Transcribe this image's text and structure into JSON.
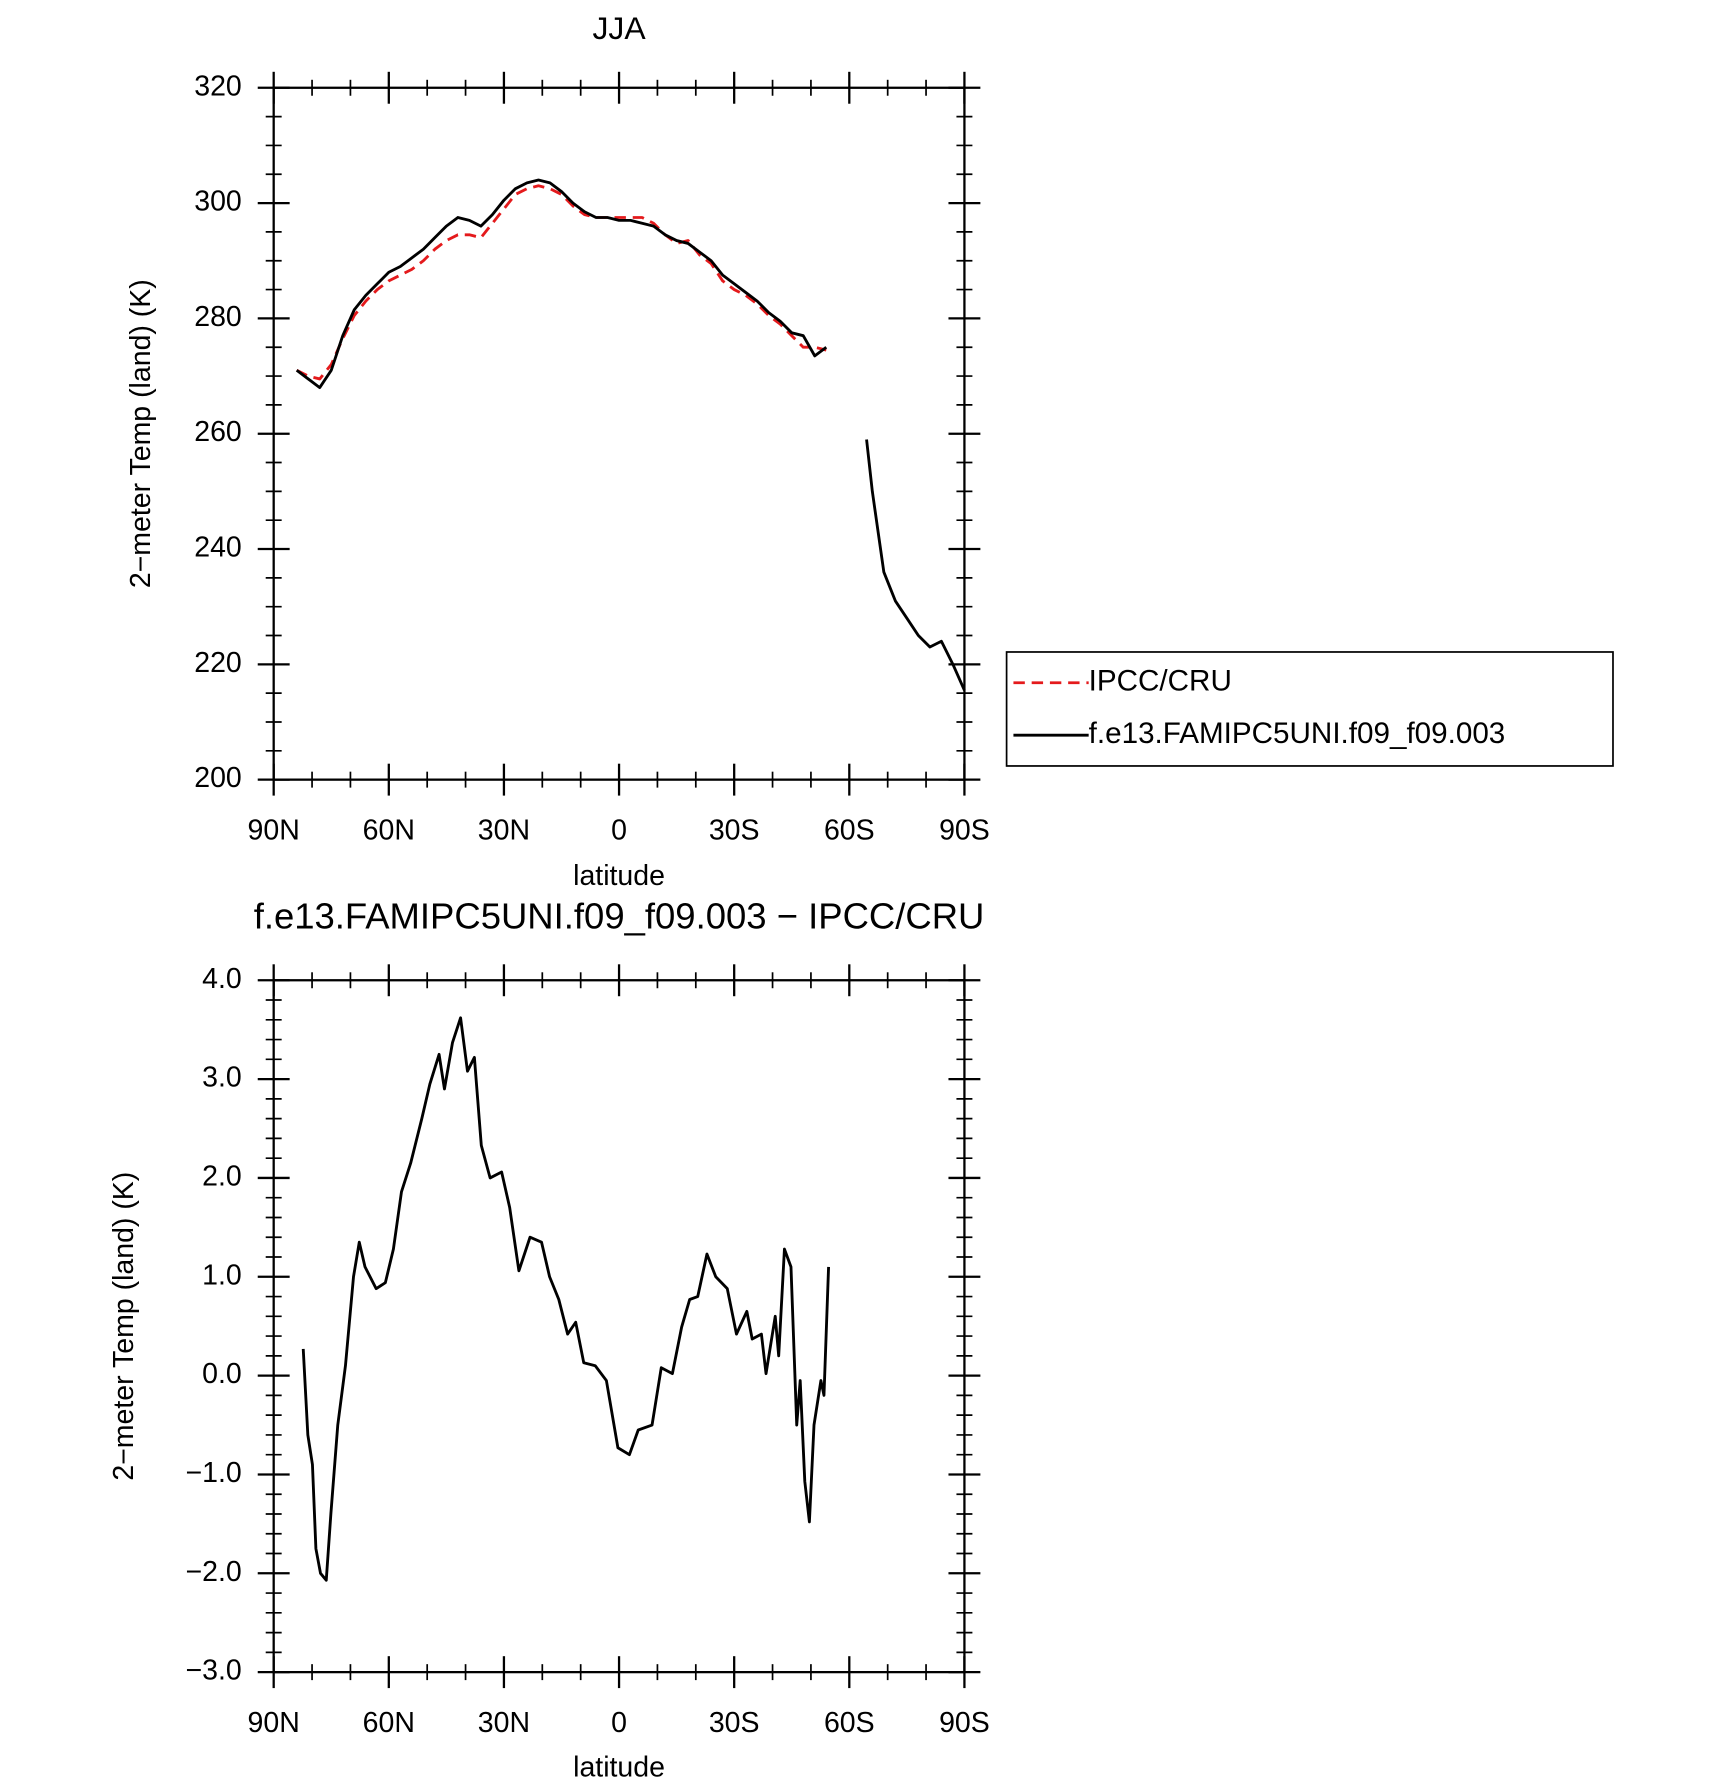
{
  "chart_data": [
    {
      "type": "line",
      "title": "JJA",
      "x_label": "latitude",
      "y_label": "2−meter Temp (land) (K)",
      "x": [
        84,
        81,
        78,
        75,
        72,
        69,
        66,
        63,
        60,
        57,
        54,
        51,
        48,
        45,
        42,
        39,
        36,
        33,
        30,
        27,
        24,
        21,
        18,
        15,
        12,
        9,
        6,
        3,
        0,
        -3,
        -6,
        -9,
        -12,
        -15,
        -18,
        -21,
        -24,
        -27,
        -30,
        -33,
        -36,
        -39,
        -42,
        -45,
        -48,
        -51,
        -54,
        -57,
        -60,
        -64.5,
        -66,
        -69,
        -72,
        -75,
        -78,
        -81,
        -84,
        -87,
        -90
      ],
      "series": [
        {
          "name": "IPCC/CRU",
          "color": "#e41a1c",
          "dashed": true,
          "values": [
            271,
            270,
            269.5,
            272,
            276.5,
            280.5,
            283,
            285,
            286.5,
            287.5,
            288.5,
            290,
            292,
            293.5,
            294.5,
            294.5,
            294,
            296.5,
            299,
            301.5,
            302.5,
            303,
            302.5,
            301.5,
            299.5,
            298,
            297.5,
            297.5,
            297.5,
            297.5,
            297.5,
            296.5,
            294.5,
            293,
            293.5,
            291,
            289.5,
            286.5,
            285,
            284,
            282.5,
            280.5,
            279,
            277,
            275,
            275,
            274.5,
            null,
            null,
            null,
            null,
            null,
            null,
            null,
            null,
            null,
            null,
            null,
            null
          ]
        },
        {
          "name": "f.e13.FAMIPC5UNI.f09_f09.003",
          "color": "#000000",
          "dashed": false,
          "values": [
            271,
            269.5,
            268,
            271,
            277,
            281.5,
            284,
            286,
            288,
            289,
            290.5,
            292,
            294,
            296,
            297.5,
            297,
            296,
            298,
            300.5,
            302.5,
            303.5,
            304,
            303.5,
            302,
            300,
            298.5,
            297.5,
            297.5,
            297,
            297,
            296.5,
            296,
            294.5,
            293.5,
            293,
            291.5,
            290,
            287.5,
            286,
            284.5,
            283,
            281,
            279.5,
            277.5,
            277,
            273.5,
            275,
            null,
            null,
            259,
            250,
            236,
            231,
            228,
            225,
            223,
            224,
            220,
            215.5
          ]
        }
      ],
      "xlim": [
        90,
        -90
      ],
      "xticks": [
        {
          "value": 90,
          "label": "90N"
        },
        {
          "value": 60,
          "label": "60N"
        },
        {
          "value": 30,
          "label": "30N"
        },
        0,
        {
          "value": -30,
          "label": "30S"
        },
        {
          "value": -60,
          "label": "60S"
        },
        {
          "value": -90,
          "label": "90S"
        }
      ],
      "ylim": [
        200,
        320
      ],
      "yticks": [
        200,
        220,
        240,
        260,
        280,
        300,
        320
      ],
      "legend": "right"
    },
    {
      "type": "line",
      "title": "f.e13.FAMIPC5UNI.f09_f09.003 − IPCC/CRU",
      "x_label": "latitude",
      "y_label": "2−meter Temp (land) (K)",
      "x": [
        82.3,
        81.1,
        79.9,
        79.0,
        77.8,
        76.3,
        75.1,
        73.3,
        71.3,
        69.2,
        67.7,
        66.2,
        63.3,
        60.9,
        58.8,
        56.7,
        54.3,
        51.4,
        49.3,
        46.9,
        45.5,
        43.4,
        41.3,
        39.5,
        37.7,
        35.9,
        33.6,
        30.6,
        28.5,
        26.1,
        23.2,
        20.2,
        18.1,
        15.7,
        13.4,
        11.3,
        9.2,
        6.2,
        3.3,
        0.3,
        -2.7,
        -5.0,
        -8.6,
        -11.0,
        -13.9,
        -16.3,
        -18.4,
        -20.5,
        -22.9,
        -25.2,
        -28.2,
        -30.6,
        -33.3,
        -34.7,
        -37.1,
        -38.3,
        -40.7,
        -41.6,
        -43.1,
        -44.8,
        -46.3,
        -47.2,
        -48.4,
        -49.6,
        -50.8,
        -52.6,
        -53.4,
        -54.6
      ],
      "values": [
        0.27,
        -0.6,
        -0.9,
        -1.75,
        -2.0,
        -2.07,
        -1.4,
        -0.5,
        0.1,
        1.0,
        1.35,
        1.1,
        0.88,
        0.94,
        1.28,
        1.86,
        2.15,
        2.6,
        2.95,
        3.25,
        2.9,
        3.37,
        3.62,
        3.08,
        3.22,
        2.33,
        2.0,
        2.06,
        1.7,
        1.06,
        1.4,
        1.35,
        1.0,
        0.77,
        0.42,
        0.54,
        0.13,
        0.1,
        -0.05,
        -0.73,
        -0.8,
        -0.55,
        -0.5,
        0.08,
        0.02,
        0.49,
        0.77,
        0.8,
        1.23,
        1.0,
        0.88,
        0.42,
        0.65,
        0.37,
        0.42,
        0.02,
        0.6,
        0.2,
        1.28,
        1.1,
        -0.5,
        -0.05,
        -1.07,
        -1.48,
        -0.5,
        -0.05,
        -0.2,
        1.1
      ],
      "color": "#000000",
      "xlim": [
        90,
        -90
      ],
      "xticks": [
        {
          "value": 90,
          "label": "90N"
        },
        {
          "value": 60,
          "label": "60N"
        },
        {
          "value": 30,
          "label": "30N"
        },
        0,
        {
          "value": -30,
          "label": "30S"
        },
        {
          "value": -60,
          "label": "60S"
        },
        {
          "value": -90,
          "label": "90S"
        }
      ],
      "ylim": [
        -3,
        4
      ],
      "yticks": [
        {
          "value": -3,
          "label": "−3.0"
        },
        {
          "value": -2,
          "label": "−2.0"
        },
        {
          "value": -1,
          "label": "−1.0"
        },
        {
          "value": 0,
          "label": "0.0"
        },
        {
          "value": 1,
          "label": "1.0"
        },
        {
          "value": 2,
          "label": "2.0"
        },
        {
          "value": 3,
          "label": "3.0"
        },
        {
          "value": 4,
          "label": "4.0"
        }
      ]
    }
  ]
}
